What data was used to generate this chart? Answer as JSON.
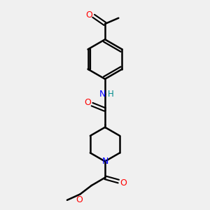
{
  "background_color": "#f0f0f0",
  "bond_color": "#000000",
  "atom_colors": {
    "O": "#ff0000",
    "N": "#0000ff",
    "H": "#008b8b",
    "C": "#000000"
  },
  "figsize": [
    3.0,
    3.0
  ],
  "dpi": 100,
  "xlim": [
    0,
    10
  ],
  "ylim": [
    0,
    10
  ]
}
